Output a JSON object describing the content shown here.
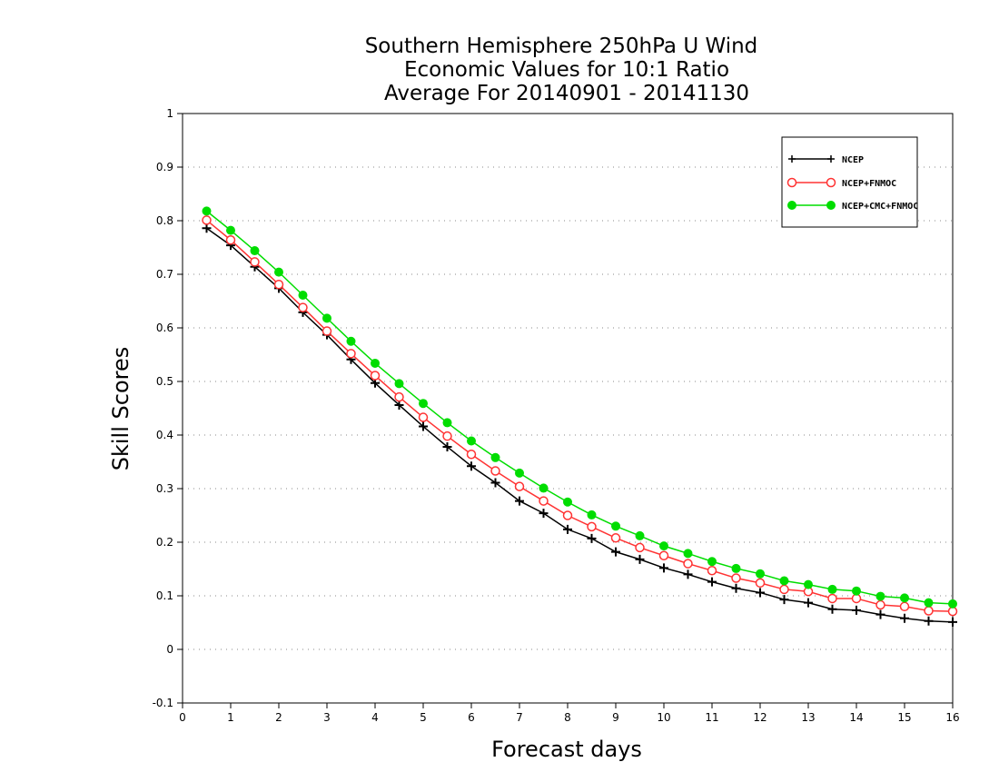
{
  "chart_data": {
    "type": "line",
    "title_lines": [
      "Southern Hemisphere 250hPa U Wind",
      "Economic Values for 10:1 Ratio",
      "Average For 20140901 - 20141130"
    ],
    "xlabel": "Forecast days",
    "ylabel": "Skill Scores",
    "xlim": [
      0,
      16
    ],
    "ylim": [
      -0.1,
      1
    ],
    "x_ticks": [
      0,
      1,
      2,
      3,
      4,
      5,
      6,
      7,
      8,
      9,
      10,
      11,
      12,
      13,
      14,
      15,
      16
    ],
    "y_ticks": [
      -0.1,
      0,
      0.1,
      0.2,
      0.3,
      0.4,
      0.5,
      0.6,
      0.7,
      0.8,
      0.9,
      1
    ],
    "y_tick_labels": [
      "-0.1",
      "0",
      "0.1",
      "0.2",
      "0.3",
      "0.4",
      "0.5",
      "0.6",
      "0.7",
      "0.8",
      "0.9",
      "1"
    ],
    "grid": "horizontal dotted",
    "legend_position": "top-right",
    "x": [
      0.5,
      1,
      1.5,
      2,
      2.5,
      3,
      3.5,
      4,
      4.5,
      5,
      5.5,
      6,
      6.5,
      7,
      7.5,
      8,
      8.5,
      9,
      9.5,
      10,
      10.5,
      11,
      11.5,
      12,
      12.5,
      13,
      13.5,
      14,
      14.5,
      15,
      15.5,
      16
    ],
    "series": [
      {
        "name": "NCEP",
        "color": "#000000",
        "marker": "plus",
        "values": [
          0.786,
          0.754,
          0.714,
          0.674,
          0.629,
          0.587,
          0.541,
          0.497,
          0.456,
          0.416,
          0.378,
          0.342,
          0.311,
          0.277,
          0.254,
          0.224,
          0.207,
          0.182,
          0.168,
          0.152,
          0.14,
          0.126,
          0.114,
          0.106,
          0.093,
          0.087,
          0.075,
          0.073,
          0.065,
          0.058,
          0.053,
          0.051
        ]
      },
      {
        "name": "NCEP+FNMOC",
        "color": "#ff3333",
        "marker": "open-circle",
        "values": [
          0.801,
          0.764,
          0.723,
          0.681,
          0.638,
          0.594,
          0.552,
          0.511,
          0.471,
          0.433,
          0.398,
          0.364,
          0.333,
          0.304,
          0.277,
          0.25,
          0.229,
          0.208,
          0.19,
          0.175,
          0.16,
          0.147,
          0.133,
          0.124,
          0.112,
          0.108,
          0.095,
          0.095,
          0.083,
          0.08,
          0.072,
          0.071
        ]
      },
      {
        "name": "NCEP+CMC+FNMOC",
        "color": "#00dd00",
        "marker": "filled-circle",
        "values": [
          0.818,
          0.782,
          0.744,
          0.704,
          0.661,
          0.618,
          0.575,
          0.534,
          0.496,
          0.459,
          0.423,
          0.389,
          0.358,
          0.329,
          0.301,
          0.275,
          0.251,
          0.23,
          0.212,
          0.193,
          0.179,
          0.164,
          0.151,
          0.141,
          0.128,
          0.121,
          0.112,
          0.109,
          0.099,
          0.096,
          0.087,
          0.085
        ]
      }
    ]
  }
}
